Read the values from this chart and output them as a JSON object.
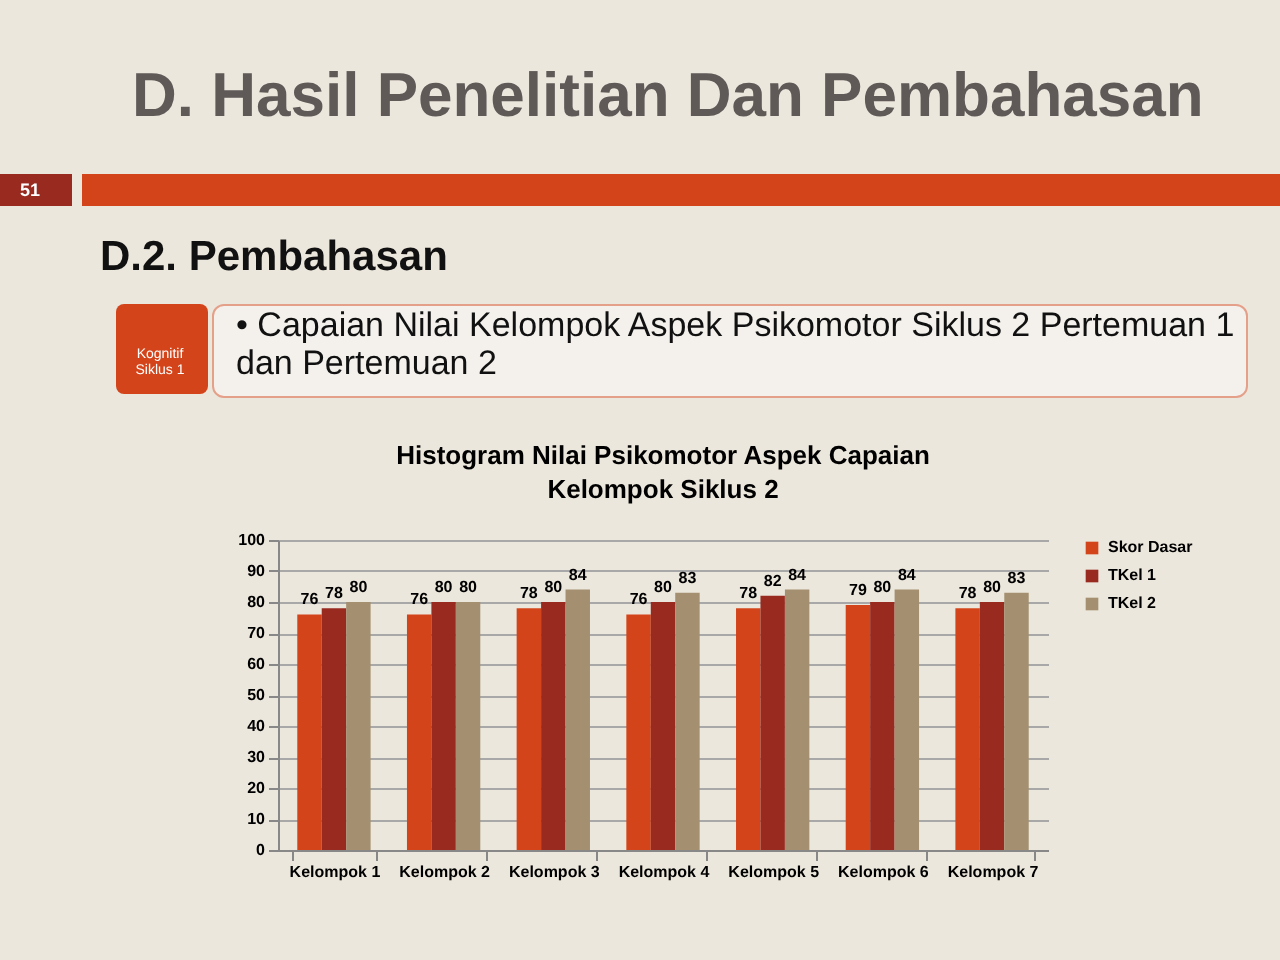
{
  "chart_data": {
    "type": "bar",
    "title": "Histogram Nilai Psikomotor Aspek Capaian Kelompok Siklus 2",
    "annotations": [
      "D. Hasil Penelitian Dan Pembahasan",
      "51",
      "D.2. Pembahasan",
      "Kognitif Siklus 1",
      "• Capaian Nilai Kelompok Aspek Psikomotor Siklus 2 Pertemuan 1 dan Pertemuan 2"
    ],
    "categories": [
      "Kelompok 1",
      "Kelompok 2",
      "Kelompok 3",
      "Kelompok 4",
      "Kelompok 5",
      "Kelompok 6",
      "Kelompok 7"
    ],
    "series": [
      {
        "name": "Skor Dasar",
        "color": "#d4441a",
        "values": [
          76,
          76,
          78,
          76,
          78,
          79,
          78
        ]
      },
      {
        "name": "TKel 1",
        "color": "#982a20",
        "values": [
          78,
          80,
          80,
          80,
          82,
          80,
          80
        ]
      },
      {
        "name": "TKel 2",
        "color": "#a49070",
        "values": [
          80,
          80,
          84,
          83,
          84,
          84,
          83
        ]
      }
    ],
    "ylim": [
      0,
      100
    ],
    "yticks": [
      0,
      10,
      20,
      30,
      40,
      50,
      60,
      70,
      80,
      90,
      100
    ],
    "grid": "y",
    "legend": "right",
    "data_labels": true
  }
}
